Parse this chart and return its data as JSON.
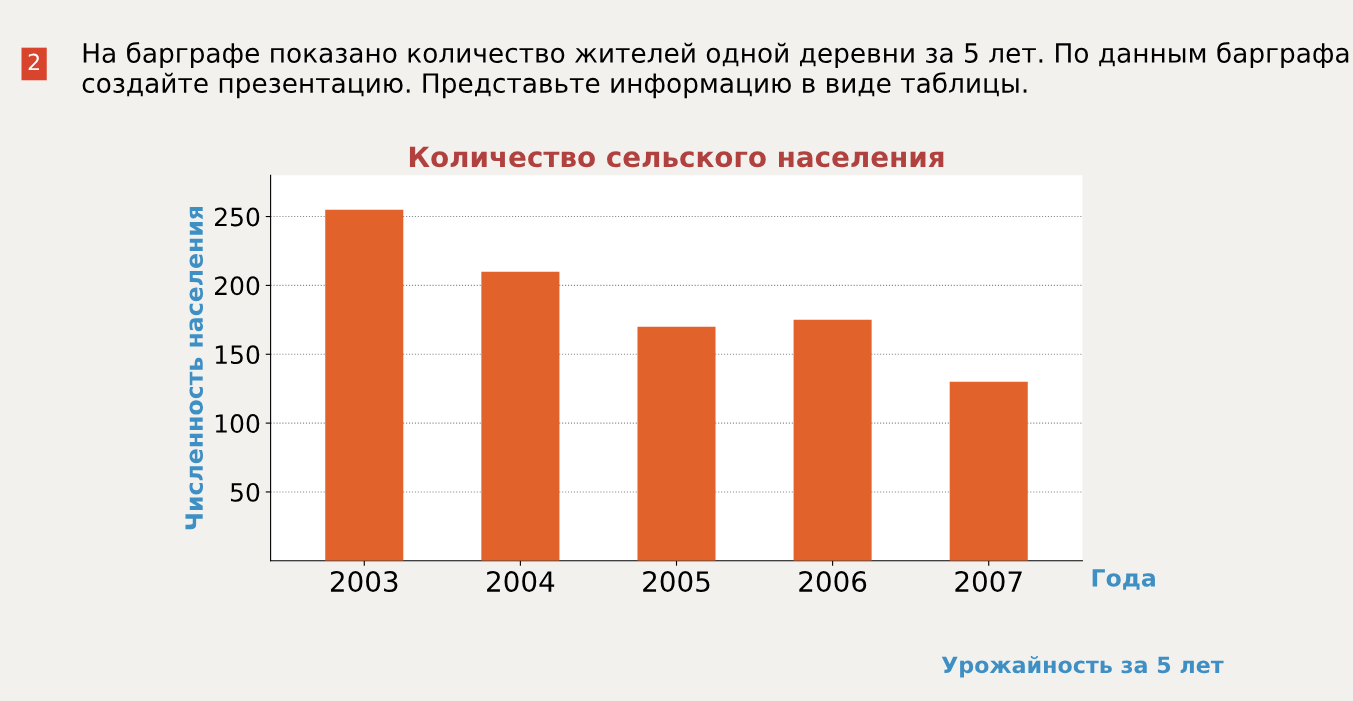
{
  "chart_data": {
    "type": "bar",
    "title": "Количество сельского населения",
    "xlabel": "Года",
    "ylabel": "Численность населения",
    "categories": [
      "2003",
      "2004",
      "2005",
      "2006",
      "2007"
    ],
    "values": [
      255,
      210,
      170,
      175,
      130
    ],
    "color": "#e2622b",
    "ylim": [
      0,
      280
    ],
    "yticks": [
      50,
      100,
      150,
      200,
      250
    ],
    "grid": "y",
    "line_style": "dotted",
    "annotations": [
      "2",
      "На барграфе показано количество жителей одной деревни за 5 лет. По данным барграфа создайте презентацию. Представьте информацию в виде таблицы.",
      "Урожайность за 5 лет"
    ]
  }
}
